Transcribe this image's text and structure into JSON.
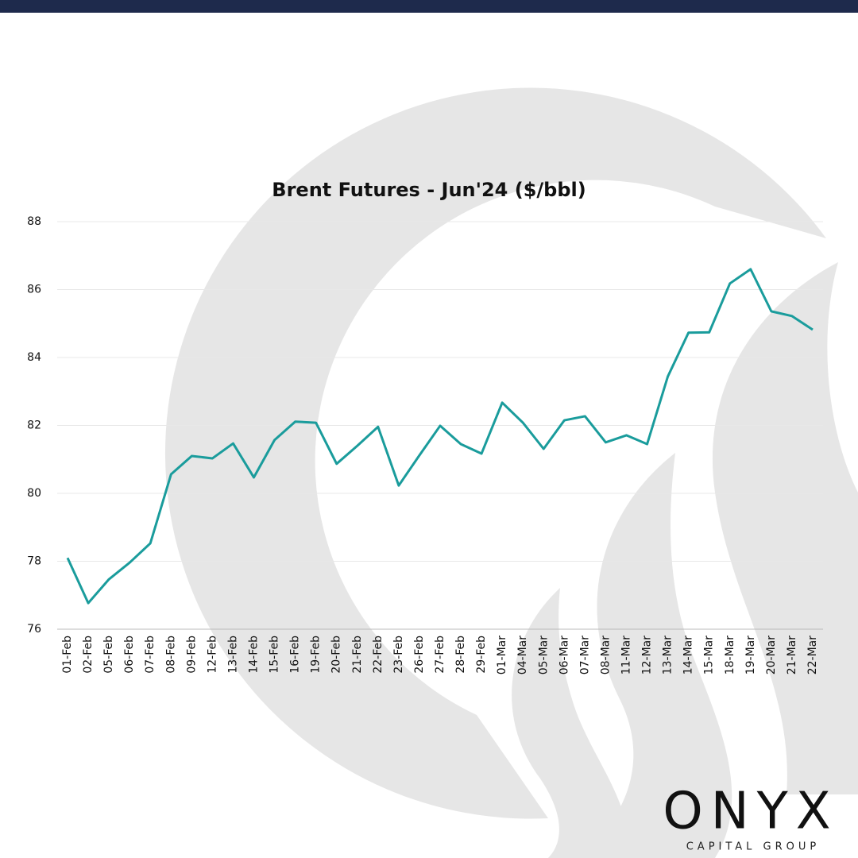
{
  "chart_data": {
    "type": "line",
    "title": "Brent Futures - Jun'24 ($/bbl)",
    "categories": [
      "01-Feb",
      "02-Feb",
      "05-Feb",
      "06-Feb",
      "07-Feb",
      "08-Feb",
      "09-Feb",
      "12-Feb",
      "13-Feb",
      "14-Feb",
      "15-Feb",
      "16-Feb",
      "19-Feb",
      "20-Feb",
      "21-Feb",
      "22-Feb",
      "23-Feb",
      "26-Feb",
      "27-Feb",
      "28-Feb",
      "29-Feb",
      "01-Mar",
      "04-Mar",
      "05-Mar",
      "06-Mar",
      "07-Mar",
      "08-Mar",
      "11-Mar",
      "12-Mar",
      "13-Mar",
      "14-Mar",
      "15-Mar",
      "18-Mar",
      "19-Mar",
      "20-Mar",
      "21-Mar",
      "22-Mar"
    ],
    "values": [
      78.1,
      76.77,
      77.47,
      77.96,
      78.53,
      80.56,
      81.1,
      81.03,
      81.47,
      80.47,
      81.57,
      82.11,
      82.08,
      80.87,
      81.4,
      81.96,
      80.23,
      81.12,
      81.99,
      81.45,
      81.17,
      82.67,
      82.08,
      81.31,
      82.15,
      82.27,
      81.5,
      81.71,
      81.45,
      83.44,
      84.73,
      84.74,
      86.18,
      86.6,
      85.36,
      85.22,
      84.82
    ],
    "color": "#1a9c9c",
    "ylim": [
      76,
      88
    ],
    "yticks": [
      76,
      78,
      80,
      82,
      84,
      86,
      88
    ],
    "grid": true
  },
  "logo": {
    "name": "ONYX",
    "tagline": "CAPITAL GROUP"
  }
}
